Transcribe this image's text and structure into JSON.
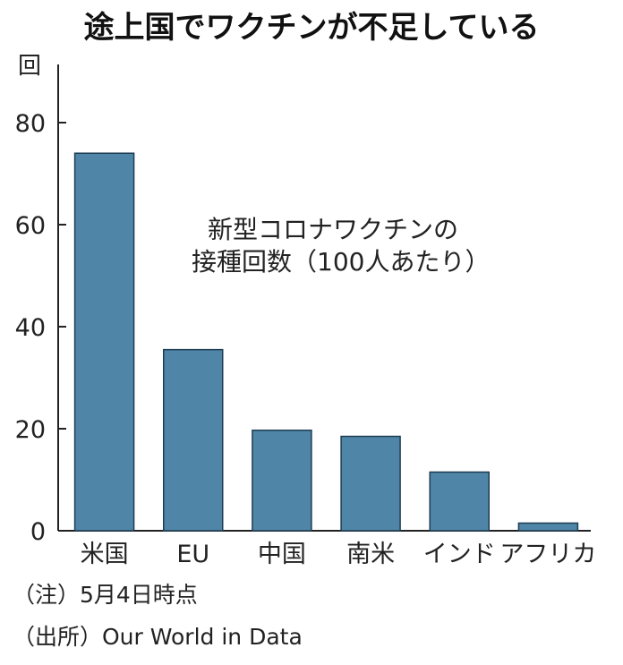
{
  "chart_data": {
    "type": "bar",
    "title": "途上国でワクチンが不足している",
    "ylabel": "回",
    "annotation": [
      "新型コロナワクチンの",
      "接種回数（100人あたり）"
    ],
    "categories": [
      "米国",
      "EU",
      "中国",
      "南米",
      "インド",
      "アフリカ"
    ],
    "values": [
      74,
      35.5,
      19.7,
      18.5,
      11.5,
      1.5
    ],
    "ylim": [
      0,
      80
    ],
    "yticks": [
      0,
      20,
      40,
      60,
      80
    ],
    "bar_color": "#4f86a8",
    "grid": false
  },
  "notes": {
    "note": "（注）5月4日時点",
    "source": "（出所）Our World in Data"
  }
}
